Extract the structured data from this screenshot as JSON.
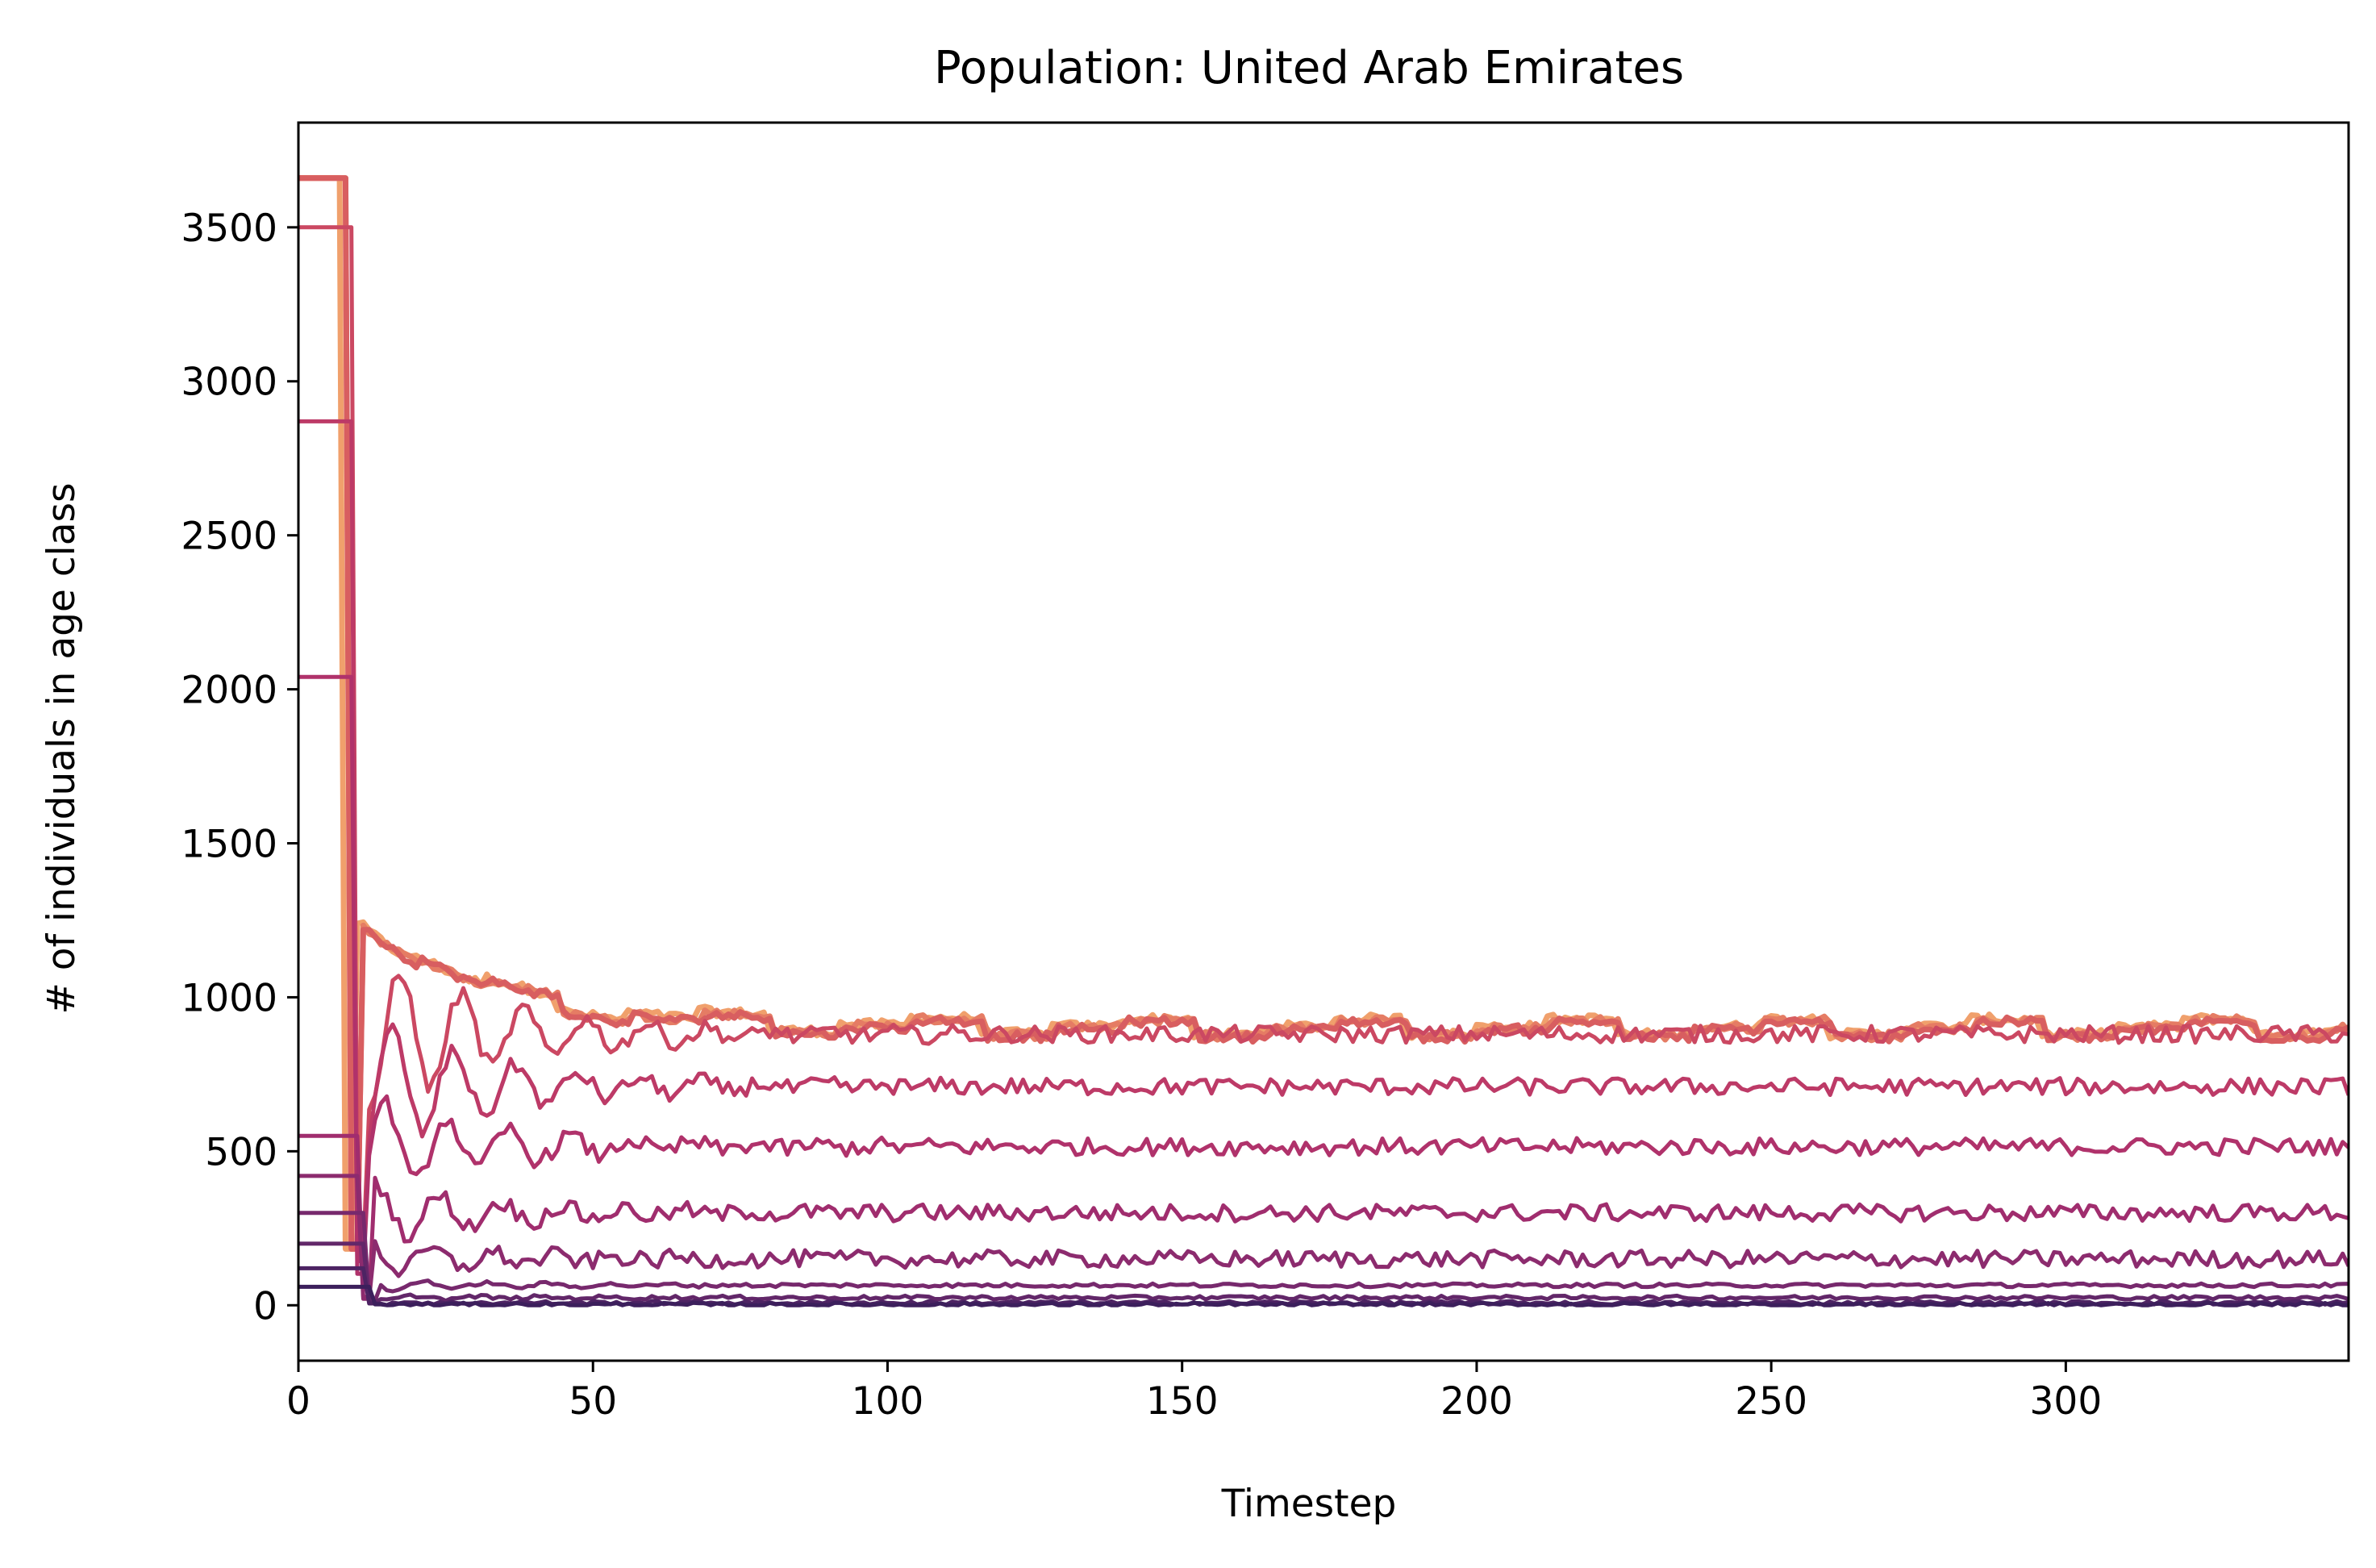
{
  "chart_data": {
    "type": "line",
    "title": "Population: United Arab Emirates",
    "xlabel": "Timestep",
    "ylabel": "# of individuals in age class",
    "xlim": [
      0,
      348
    ],
    "ylim": [
      -180,
      3840
    ],
    "xticks": [
      0,
      50,
      100,
      150,
      200,
      250,
      300
    ],
    "yticks": [
      0,
      500,
      1000,
      1500,
      2000,
      2500,
      3000,
      3500
    ],
    "xtick_labels": [
      "0",
      "50",
      "100",
      "150",
      "200",
      "250",
      "300"
    ],
    "ytick_labels": [
      "0",
      "500",
      "1000",
      "1500",
      "2000",
      "2500",
      "3000",
      "3500"
    ],
    "grid": false,
    "legend": "none",
    "colormap": [
      "#f3a870",
      "#e98565",
      "#da5a5f",
      "#c43d66",
      "#a82e6e",
      "#852a6e",
      "#5e2668",
      "#3f1e5c"
    ],
    "series_summary": [
      {
        "initial": 3660,
        "steady": 905,
        "color": "#f0a06c"
      },
      {
        "initial": 3660,
        "steady": 900,
        "color": "#e57c64"
      },
      {
        "initial": 3660,
        "steady": 895,
        "color": "#d85e60"
      },
      {
        "initial": 3500,
        "steady": 880,
        "color": "#cb4862"
      },
      {
        "initial": 2870,
        "steady": 710,
        "color": "#bd3a67"
      },
      {
        "initial": 2040,
        "steady": 515,
        "color": "#b0326b"
      },
      {
        "initial": 550,
        "steady": 300,
        "color": "#a02d6e"
      },
      {
        "initial": 420,
        "steady": 150,
        "color": "#8c2b6e"
      },
      {
        "initial": 300,
        "steady": 65,
        "color": "#77296d"
      },
      {
        "initial": 200,
        "steady": 25,
        "color": "#622769"
      },
      {
        "initial": 120,
        "steady": 8,
        "color": "#4d2363"
      },
      {
        "initial": 60,
        "steady": 2,
        "color": "#3c1f5c"
      }
    ]
  }
}
